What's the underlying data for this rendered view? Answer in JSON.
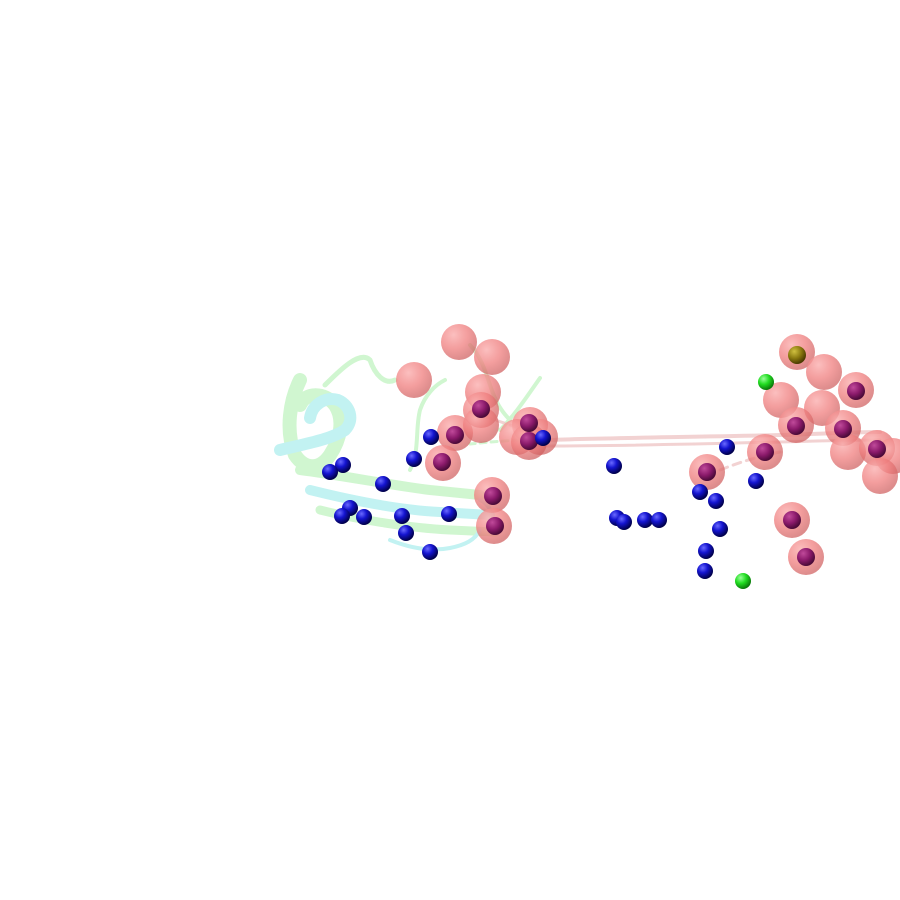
{
  "scene": {
    "background": "#ffffff",
    "colors": {
      "salmon_sphere": "#f08080",
      "salmon_sphere_dark": "#d45a5a",
      "purple_sphere": "#8b1a6b",
      "blue_sphere": "#1010cc",
      "blue_sphere_dark": "#000066",
      "green_sphere": "#22dd22",
      "olive_sphere": "#8b8b00",
      "ribbon_green": "#c8f5c8",
      "ribbon_cyan": "#b8f0f0",
      "tube_pink": "#f0c8c8"
    }
  }
}
